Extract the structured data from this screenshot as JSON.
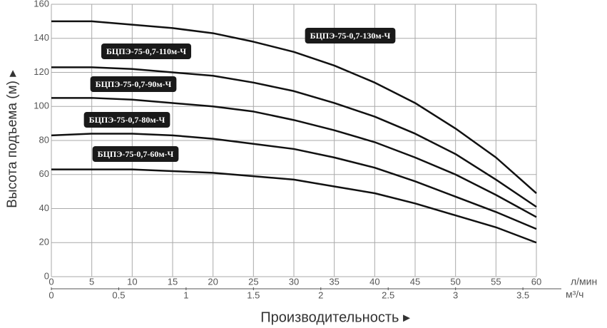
{
  "chart_data": {
    "type": "line",
    "x_label": "Производительность ▸",
    "y_label": "Высота подъема (м) ▸",
    "x_unit": "л/мин",
    "x2_unit": "м³/ч",
    "x": [
      0,
      5,
      10,
      15,
      20,
      25,
      30,
      35,
      40,
      45,
      50,
      55,
      60
    ],
    "series": [
      {
        "name": "БЦПЭ-75-0,7-130м-Ч",
        "color": "#111111",
        "values": [
          150,
          150,
          148,
          146,
          143,
          138,
          132,
          124,
          114,
          102,
          87,
          70,
          49
        ]
      },
      {
        "name": "БЦПЭ-75-0,7-110м-Ч",
        "color": "#111111",
        "values": [
          123,
          123,
          122,
          120,
          118,
          114,
          109,
          102,
          94,
          84,
          72,
          57,
          41
        ]
      },
      {
        "name": "БЦПЭ-75-0,7-90м-Ч",
        "color": "#111111",
        "values": [
          105,
          105,
          104,
          102,
          100,
          97,
          92,
          86,
          79,
          70,
          60,
          48,
          35
        ]
      },
      {
        "name": "БЦПЭ-75-0,7-80м-Ч",
        "color": "#111111",
        "values": [
          83,
          84,
          84,
          83,
          81,
          78,
          75,
          70,
          64,
          56,
          47,
          38,
          28
        ]
      },
      {
        "name": "БЦПЭ-75-0,7-60м-Ч",
        "color": "#111111",
        "values": [
          63,
          63,
          63,
          62,
          61,
          59,
          57,
          53,
          49,
          43,
          36,
          29,
          20
        ]
      }
    ],
    "xlim": [
      0,
      60
    ],
    "xticks": [
      0,
      5,
      10,
      15,
      20,
      25,
      30,
      35,
      40,
      45,
      50,
      55,
      60
    ],
    "x2lim": [
      0,
      3.6
    ],
    "x2ticks": [
      0,
      0.5,
      1,
      1.5,
      2,
      2.5,
      3,
      3.5
    ],
    "ylim": [
      0,
      160
    ],
    "yticks": [
      0,
      20,
      40,
      60,
      80,
      100,
      120,
      140,
      160
    ],
    "grid": true
  }
}
